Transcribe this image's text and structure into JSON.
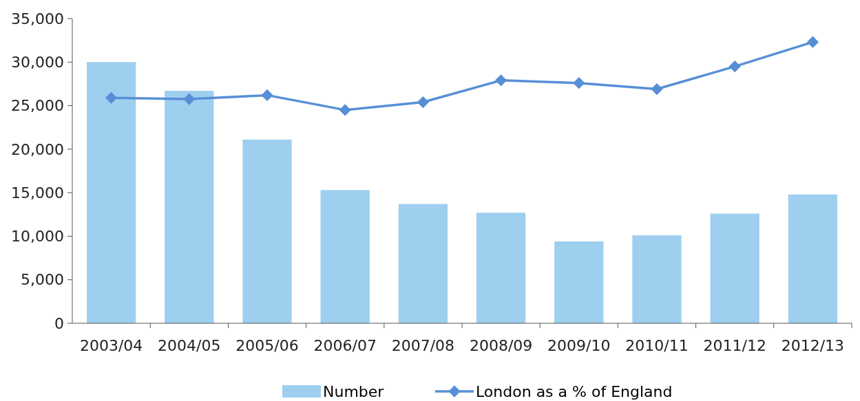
{
  "chart_data": {
    "type": "bar",
    "categories": [
      "2003/04",
      "2004/05",
      "2005/06",
      "2006/07",
      "2007/08",
      "2008/09",
      "2009/10",
      "2010/11",
      "2011/12",
      "2012/13"
    ],
    "series": [
      {
        "name": "Number",
        "color": "#9ecfef",
        "values": [
          30000,
          26700,
          21100,
          15300,
          13700,
          12700,
          9400,
          10100,
          12600,
          14800
        ]
      },
      {
        "name": "London as a % of England",
        "type": "line",
        "color": "#578fd6",
        "marker": "diamond",
        "values": [
          25900,
          25750,
          26200,
          24500,
          25400,
          27900,
          27600,
          26900,
          29500,
          32300
        ]
      }
    ],
    "ylim": [
      0,
      35000
    ],
    "yticks": [
      {
        "value": 0,
        "label": "0"
      },
      {
        "value": 5000,
        "label": "5,000"
      },
      {
        "value": 10000,
        "label": "10,000"
      },
      {
        "value": 15000,
        "label": "15,000"
      },
      {
        "value": 20000,
        "label": "20,000"
      },
      {
        "value": 25000,
        "label": "25,000"
      },
      {
        "value": 30000,
        "label": "30,000"
      },
      {
        "value": 35000,
        "label": "35,000"
      }
    ],
    "legend": "bottom"
  }
}
